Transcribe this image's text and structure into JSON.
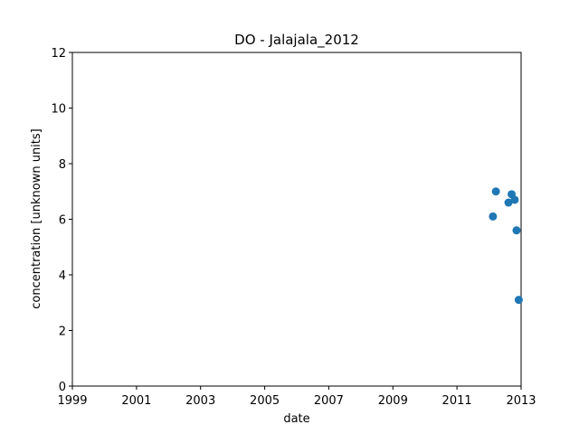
{
  "chart_data": {
    "type": "scatter",
    "title": "DO - Jalajala_2012",
    "xlabel": "date",
    "ylabel": "concentration [unknown units]",
    "xlim": [
      "1999-01-01",
      "2013-01-01"
    ],
    "ylim": [
      0,
      12
    ],
    "xticks": [
      "1999",
      "2001",
      "2003",
      "2005",
      "2007",
      "2009",
      "2011",
      "2013"
    ],
    "yticks": [
      "0",
      "2",
      "4",
      "6",
      "8",
      "10",
      "12"
    ],
    "grid": false,
    "point_color": "#1f77b4",
    "points": [
      {
        "x": "2012-02-15",
        "y": 6.1
      },
      {
        "x": "2012-03-20",
        "y": 7.0
      },
      {
        "x": "2012-08-10",
        "y": 6.6
      },
      {
        "x": "2012-09-15",
        "y": 6.9
      },
      {
        "x": "2012-10-20",
        "y": 6.7
      },
      {
        "x": "2012-11-10",
        "y": 5.6
      },
      {
        "x": "2012-12-05",
        "y": 3.1
      }
    ]
  }
}
